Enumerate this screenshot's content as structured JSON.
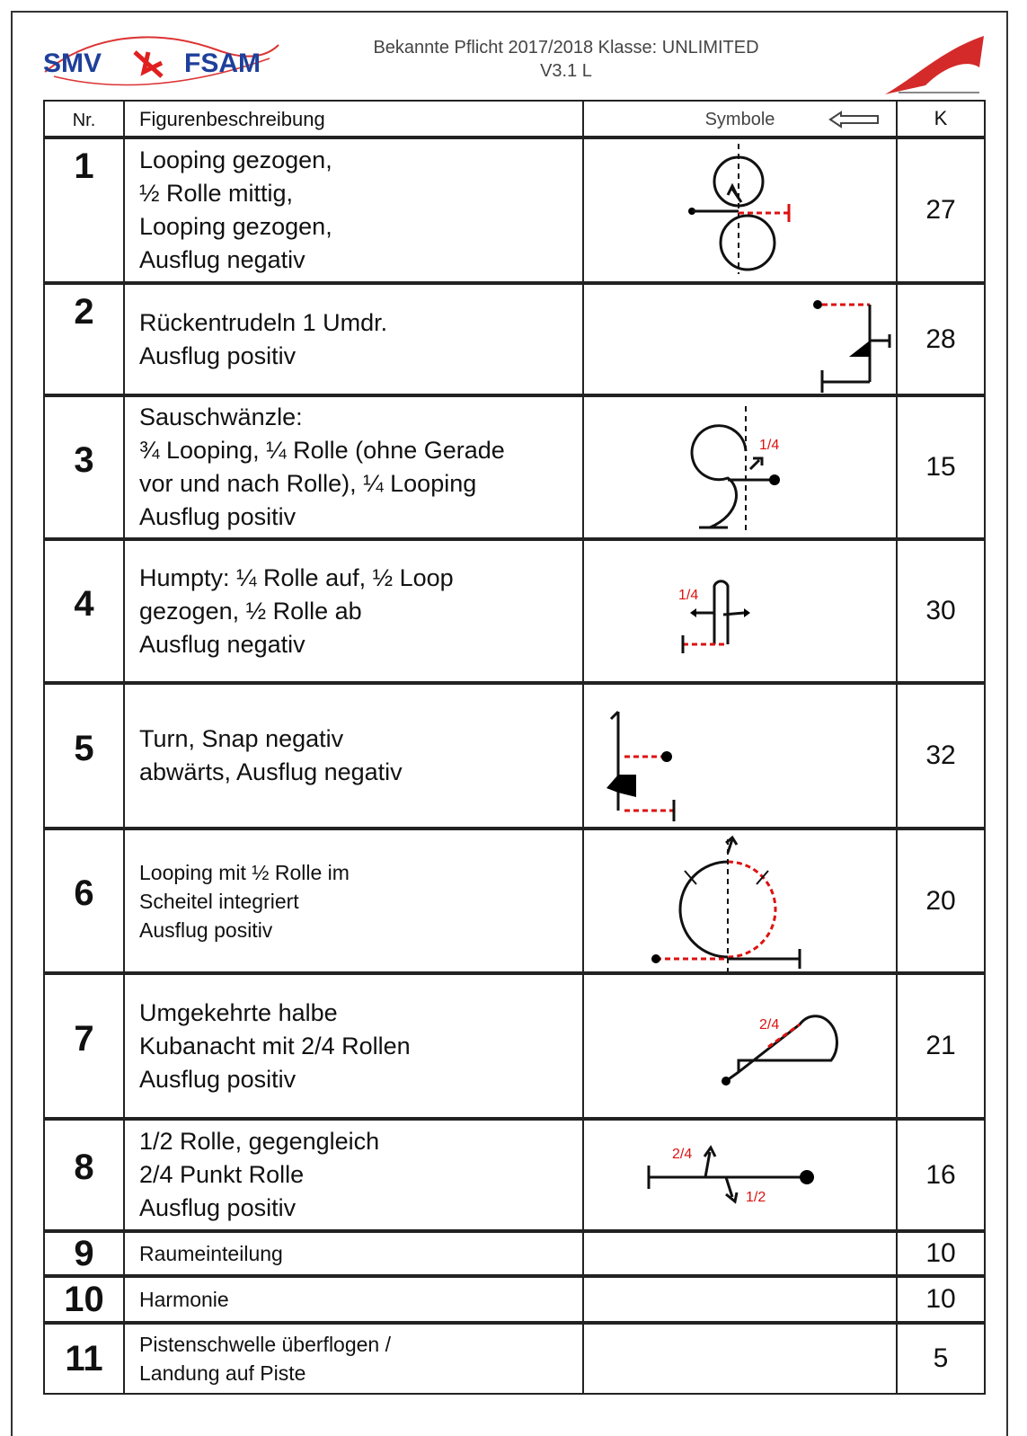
{
  "header": {
    "logo_left": [
      "SMV",
      "FSAM"
    ],
    "title": "Bekannte Pflicht 2017/2018 Klasse: UNLIMITED",
    "version": "V3.1 L"
  },
  "table": {
    "columns": [
      "Nr.",
      "Figurenbeschreibung",
      "Symbole",
      "K"
    ],
    "rows": [
      {
        "nr": "1",
        "lines": [
          "Looping gezogen,",
          "½ Rolle mittig,",
          "Looping gezogen,",
          "Ausflug negativ"
        ],
        "k": "27"
      },
      {
        "nr": "2",
        "lines": [
          "Rückentrudeln 1 Umdr.",
          "Ausflug positiv"
        ],
        "k": "28"
      },
      {
        "nr": "3",
        "lines": [
          "Sauschwänzle:",
          "¾ Looping, ¼ Rolle (ohne Gerade",
          "vor und nach Rolle), ¼ Looping",
          "Ausflug positiv"
        ],
        "k": "15",
        "symbol_labels": [
          "1/4"
        ]
      },
      {
        "nr": "4",
        "lines": [
          "Humpty: ¼ Rolle auf, ½ Loop",
          "gezogen, ½ Rolle ab",
          "Ausflug negativ"
        ],
        "k": "30",
        "symbol_labels": [
          "1/4"
        ]
      },
      {
        "nr": "5",
        "lines": [
          "Turn, Snap negativ",
          "abwärts, Ausflug negativ"
        ],
        "k": "32"
      },
      {
        "nr": "6",
        "lines": [
          "Looping mit ½ Rolle im",
          "Scheitel integriert",
          "Ausflug positiv"
        ],
        "k": "20"
      },
      {
        "nr": "7",
        "lines": [
          "Umgekehrte halbe",
          "Kubanacht mit 2/4 Rollen",
          "Ausflug positiv"
        ],
        "k": "21",
        "symbol_labels": [
          "2/4"
        ]
      },
      {
        "nr": "8",
        "lines": [
          "1/2 Rolle, gegengleich",
          "2/4 Punkt Rolle",
          "Ausflug positiv"
        ],
        "k": "16",
        "symbol_labels": [
          "2/4",
          "1/2"
        ]
      },
      {
        "nr": "9",
        "lines": [
          "Raumeinteilung"
        ],
        "k": "10"
      },
      {
        "nr": "10",
        "lines": [
          "Harmonie"
        ],
        "k": "10"
      },
      {
        "nr": "11",
        "lines": [
          "Pistenschwelle überflogen /",
          "Landung auf Piste"
        ],
        "k": "5"
      }
    ]
  }
}
